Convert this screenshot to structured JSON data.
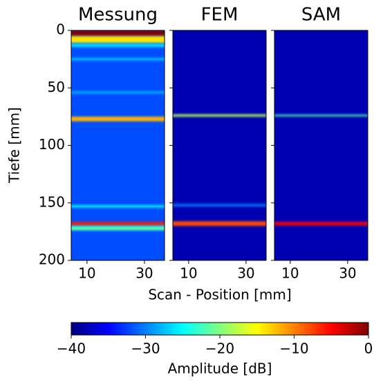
{
  "chart_data": [
    {
      "type": "heatmap",
      "title": "Messung",
      "xlim": [
        4.5,
        37
      ],
      "xticks": [
        10,
        30
      ],
      "ylim": [
        200,
        0
      ],
      "yticks": [
        0,
        50,
        100,
        150,
        200
      ],
      "colormap": "jet",
      "background": -32,
      "bands": [
        {
          "depth": 2.5,
          "amplitude": 0,
          "width": 5
        },
        {
          "depth": 8,
          "amplitude": -14,
          "width": 6
        },
        {
          "depth": 13,
          "amplitude": -26,
          "width": 3
        },
        {
          "depth": 25,
          "amplitude": -27,
          "width": 2
        },
        {
          "depth": 54,
          "amplitude": -28,
          "width": 2
        },
        {
          "depth": 77,
          "amplitude": -12,
          "width": 4
        },
        {
          "depth": 153,
          "amplitude": -25,
          "width": 2
        },
        {
          "depth": 168,
          "amplitude": -6,
          "width": 3
        },
        {
          "depth": 172,
          "amplitude": -22,
          "width": 4
        }
      ]
    },
    {
      "type": "heatmap",
      "title": "FEM",
      "xlim": [
        4.5,
        37
      ],
      "xticks": [
        10,
        30
      ],
      "ylim": [
        200,
        0
      ],
      "yticks": [
        0,
        50,
        100,
        150,
        200
      ],
      "colormap": "jet",
      "background": -38,
      "bands": [
        {
          "depth": 74,
          "amplitude": -18,
          "width": 2
        },
        {
          "depth": 152,
          "amplitude": -30,
          "width": 2
        },
        {
          "depth": 168,
          "amplitude": -8,
          "width": 4
        }
      ]
    },
    {
      "type": "heatmap",
      "title": "SAM",
      "xlim": [
        4.5,
        37
      ],
      "xticks": [
        10,
        30
      ],
      "ylim": [
        200,
        0
      ],
      "yticks": [
        0,
        50,
        100,
        150,
        200
      ],
      "colormap": "jet",
      "background": -38,
      "bands": [
        {
          "depth": 74,
          "amplitude": -22,
          "width": 1.5
        },
        {
          "depth": 168,
          "amplitude": -5,
          "width": 3
        }
      ]
    }
  ],
  "xlabel": "Scan - Position [mm]",
  "ylabel": "Tiefe [mm]",
  "colorbar": {
    "label": "Amplitude [dB]",
    "colormap": "jet",
    "lim": [
      -40,
      0
    ],
    "ticks": [
      {
        "value": -40,
        "label": "−40"
      },
      {
        "value": -30,
        "label": "−30"
      },
      {
        "value": -20,
        "label": "−20"
      },
      {
        "value": -10,
        "label": "−10"
      },
      0
    ]
  }
}
